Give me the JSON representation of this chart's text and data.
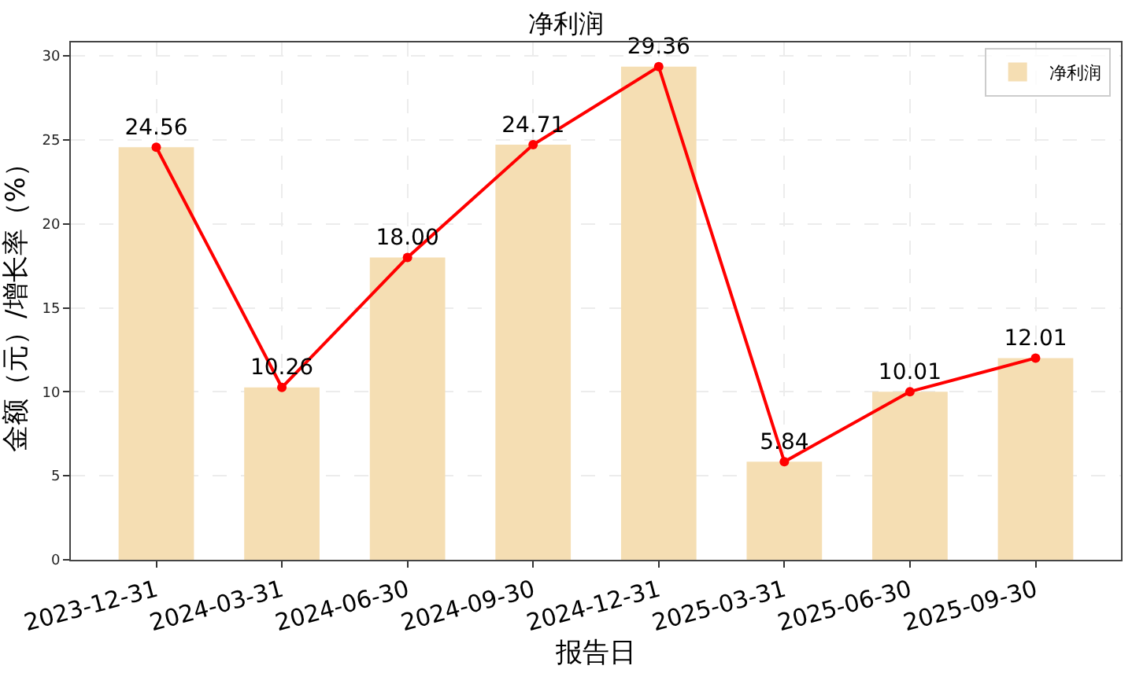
{
  "chart_data": {
    "type": "bar",
    "title": "净利润",
    "xlabel": "报告日",
    "ylabel": "金额（元）/增长率（%）",
    "categories": [
      "2023-12-31",
      "2024-03-31",
      "2024-06-30",
      "2024-09-30",
      "2024-12-31",
      "2025-03-31",
      "2025-06-30",
      "2025-09-30"
    ],
    "series": [
      {
        "name": "净利润",
        "color": "#f5deb3",
        "values": [
          24.56,
          10.26,
          18.0,
          24.71,
          29.36,
          5.84,
          10.01,
          12.01
        ]
      },
      {
        "type": "line",
        "color": "#ff0000",
        "values": [
          24.56,
          10.26,
          18.0,
          24.71,
          29.36,
          5.84,
          10.01,
          12.01
        ],
        "value_labels": [
          "24.56",
          "10.26",
          "18.00",
          "24.71",
          "29.36",
          "5.84",
          "10.01",
          "12.01"
        ]
      }
    ],
    "ylim": [
      0,
      30.8
    ],
    "yticks": [
      0,
      5,
      10,
      15,
      20,
      25,
      30
    ],
    "grid": true,
    "legend": "top right",
    "marker": "circle",
    "line_style": "solid"
  }
}
